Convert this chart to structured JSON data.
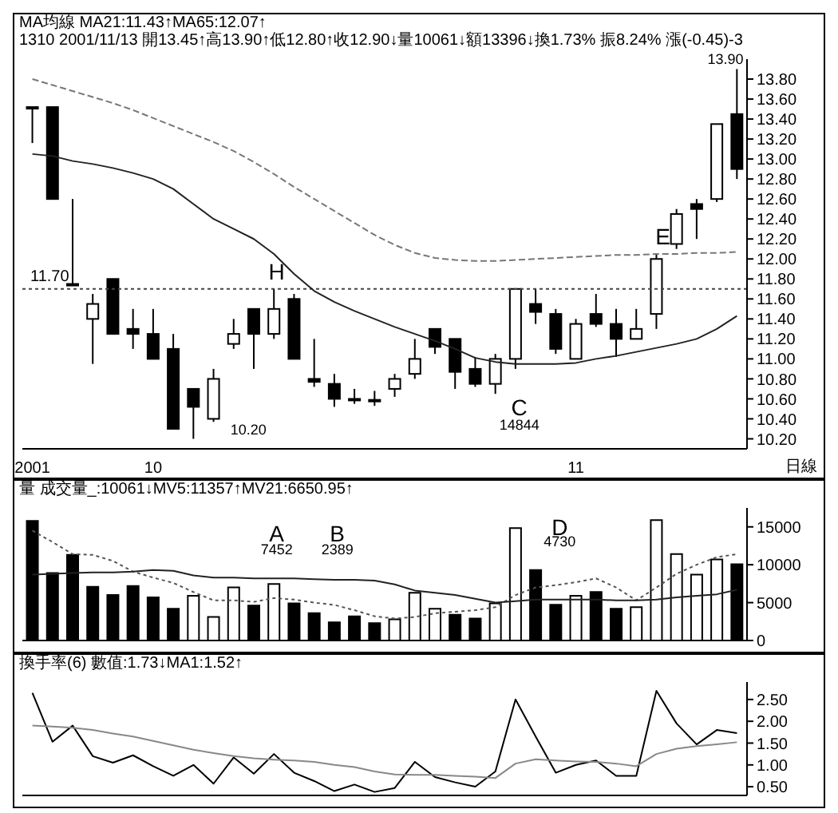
{
  "chart_data": [
    {
      "type": "candlestick",
      "title": "MA均線 MA21:11.43↑MA65:12.07↑",
      "subtitle": "1310 2001/11/13 開13.45↑高13.90↑低12.80↑收12.90↓量10061↓額13396↓換1.73% 振8.24% 漲(-0.45)-3",
      "categories": [
        "2001",
        null,
        null,
        null,
        null,
        null,
        "10",
        null,
        null,
        null,
        null,
        null,
        null,
        null,
        null,
        null,
        null,
        null,
        null,
        null,
        null,
        null,
        null,
        null,
        null,
        null,
        null,
        "11",
        null,
        null,
        null,
        null,
        null,
        null,
        null,
        null
      ],
      "ohlc": [
        [
          13.52,
          13.52,
          13.16,
          13.52
        ],
        [
          13.52,
          13.52,
          12.6,
          12.6
        ],
        [
          11.75,
          12.6,
          11.75,
          11.75
        ],
        [
          11.4,
          11.65,
          10.95,
          11.55
        ],
        [
          11.8,
          11.8,
          11.25,
          11.25
        ],
        [
          11.3,
          11.5,
          11.1,
          11.25
        ],
        [
          11.25,
          11.5,
          11.0,
          11.0
        ],
        [
          11.1,
          11.25,
          10.3,
          10.3
        ],
        [
          10.7,
          10.7,
          10.2,
          10.52
        ],
        [
          10.4,
          10.9,
          10.37,
          10.8
        ],
        [
          11.15,
          11.4,
          11.1,
          11.25
        ],
        [
          11.5,
          11.5,
          10.9,
          11.25
        ],
        [
          11.25,
          11.7,
          11.2,
          11.5
        ],
        [
          11.6,
          11.65,
          11.0,
          11.0
        ],
        [
          10.8,
          11.2,
          10.72,
          10.77
        ],
        [
          10.75,
          10.85,
          10.52,
          10.6
        ],
        [
          10.6,
          10.7,
          10.55,
          10.6
        ],
        [
          10.59,
          10.68,
          10.53,
          10.59
        ],
        [
          10.7,
          10.85,
          10.62,
          10.8
        ],
        [
          10.85,
          11.2,
          10.8,
          11.0
        ],
        [
          11.3,
          11.3,
          11.05,
          11.12
        ],
        [
          11.2,
          11.2,
          10.7,
          10.87
        ],
        [
          10.9,
          11.02,
          10.72,
          10.75
        ],
        [
          10.75,
          11.05,
          10.65,
          11.0
        ],
        [
          11.0,
          11.7,
          10.9,
          11.7
        ],
        [
          11.55,
          11.7,
          11.35,
          11.47
        ],
        [
          11.45,
          11.5,
          11.05,
          11.1
        ],
        [
          11.0,
          11.4,
          11.0,
          11.35
        ],
        [
          11.45,
          11.65,
          11.32,
          11.35
        ],
        [
          11.35,
          11.5,
          11.02,
          11.2
        ],
        [
          11.2,
          11.5,
          11.2,
          11.3
        ],
        [
          11.45,
          12.05,
          11.3,
          12.0
        ],
        [
          12.15,
          12.5,
          12.1,
          12.45
        ],
        [
          12.55,
          12.6,
          12.2,
          12.5
        ],
        [
          12.6,
          13.35,
          12.57,
          13.35
        ],
        [
          13.45,
          13.9,
          12.8,
          12.9
        ]
      ],
      "series": [
        {
          "type": "line",
          "color": "#222222",
          "line_style": "solid",
          "values": [
            13.05,
            13.03,
            12.98,
            12.95,
            12.91,
            12.86,
            12.8,
            12.7,
            12.55,
            12.4,
            12.3,
            12.2,
            12.05,
            11.85,
            11.68,
            11.57,
            11.48,
            11.4,
            11.32,
            11.25,
            11.18,
            11.1,
            11.01,
            10.97,
            10.95,
            10.95,
            10.95,
            10.96,
            11.0,
            11.03,
            11.07,
            11.11,
            11.15,
            11.2,
            11.3,
            11.43
          ]
        },
        {
          "type": "line",
          "color": "#777777",
          "line_style": "dashed",
          "values": [
            13.8,
            13.74,
            13.68,
            13.62,
            13.56,
            13.49,
            13.41,
            13.33,
            13.25,
            13.17,
            13.08,
            12.97,
            12.85,
            12.72,
            12.6,
            12.48,
            12.36,
            12.24,
            12.14,
            12.06,
            12.01,
            11.99,
            11.98,
            11.98,
            11.99,
            12.0,
            12.01,
            12.02,
            12.03,
            12.04,
            12.04,
            12.05,
            12.05,
            12.06,
            12.06,
            12.07
          ]
        }
      ],
      "ylim": [
        10.1,
        14.0
      ],
      "yticks": [
        {
          "value": 10.2,
          "label": "10.20"
        },
        {
          "value": 10.4,
          "label": "10.40"
        },
        {
          "value": 10.6,
          "label": "10.60"
        },
        {
          "value": 10.8,
          "label": "10.80"
        },
        {
          "value": 11,
          "label": "11.00"
        },
        {
          "value": 11.2,
          "label": "11.20"
        },
        {
          "value": 11.4,
          "label": "11.40"
        },
        {
          "value": 11.6,
          "label": "11.60"
        },
        {
          "value": 11.8,
          "label": "11.80"
        },
        {
          "value": 12,
          "label": "12.00"
        },
        {
          "value": 12.2,
          "label": "12.20"
        },
        {
          "value": 12.4,
          "label": "12.40"
        },
        {
          "value": 12.6,
          "label": "12.60"
        },
        {
          "value": 12.8,
          "label": "12.80"
        },
        {
          "value": 13,
          "label": "13.00"
        },
        {
          "value": 13.2,
          "label": "13.20"
        },
        {
          "value": 13.4,
          "label": "13.40"
        },
        {
          "value": 13.6,
          "label": "13.60"
        },
        {
          "value": 13.8,
          "label": "13.80"
        }
      ],
      "ref_lines": [
        {
          "axis": "y",
          "value": 11.7,
          "label": "11.70",
          "line_style": "dotted",
          "color": "#444444"
        }
      ],
      "annotations": [
        "13.90",
        "10.20",
        "H",
        "E",
        "C",
        "14844",
        "日線"
      ],
      "marker": "none",
      "grid": false,
      "legend": false
    },
    {
      "type": "bar",
      "title": "量 成交量_:10061↓MV5:11357↑MV21:6650.95↑",
      "categories": [
        "2001",
        null,
        null,
        null,
        null,
        null,
        "10",
        null,
        null,
        null,
        null,
        null,
        null,
        null,
        null,
        null,
        null,
        null,
        null,
        null,
        null,
        null,
        null,
        null,
        null,
        null,
        null,
        "11",
        null,
        null,
        null,
        null,
        null,
        null,
        null,
        null
      ],
      "series": [
        {
          "type": "bar",
          "values": [
            15800,
            8900,
            11300,
            7100,
            6000,
            7200,
            5700,
            4200,
            5900,
            3100,
            7000,
            4600,
            7452,
            4900,
            3600,
            2389,
            3200,
            2300,
            2800,
            6300,
            4200,
            3400,
            2900,
            4900,
            14844,
            9300,
            4730,
            5900,
            6400,
            4200,
            4400,
            15900,
            11400,
            8700,
            10700,
            10061
          ],
          "colors": [
            "#000000",
            "#000000",
            "#000000",
            "#000000",
            "#000000",
            "#000000",
            "#000000",
            "#000000",
            "#ffffff",
            "#ffffff",
            "#ffffff",
            "#000000",
            "#ffffff",
            "#000000",
            "#000000",
            "#000000",
            "#000000",
            "#000000",
            "#ffffff",
            "#ffffff",
            "#ffffff",
            "#000000",
            "#000000",
            "#ffffff",
            "#ffffff",
            "#000000",
            "#000000",
            "#ffffff",
            "#000000",
            "#000000",
            "#ffffff",
            "#ffffff",
            "#ffffff",
            "#ffffff",
            "#ffffff",
            "#000000"
          ]
        },
        {
          "type": "line",
          "color": "#555555",
          "line_style": "dotted",
          "values": [
            14500,
            13000,
            11400,
            11300,
            10500,
            9100,
            8300,
            7600,
            6400,
            5300,
            5300,
            5100,
            5600,
            5400,
            5000,
            4700,
            4000,
            3200,
            2900,
            3100,
            3600,
            3800,
            4000,
            4400,
            6000,
            7000,
            7300,
            7700,
            8200,
            7000,
            5300,
            7000,
            8800,
            10000,
            11000,
            11400
          ]
        },
        {
          "type": "line",
          "color": "#222222",
          "line_style": "solid",
          "values": [
            8700,
            8800,
            8900,
            9000,
            9000,
            9100,
            9300,
            9200,
            8600,
            8300,
            8300,
            8200,
            8200,
            8200,
            8100,
            8000,
            8000,
            7900,
            7400,
            6600,
            6300,
            6000,
            5500,
            5000,
            5200,
            5400,
            5400,
            5400,
            5400,
            5300,
            5300,
            5400,
            5700,
            5900,
            6100,
            6700
          ]
        }
      ],
      "ylim": [
        0,
        17500
      ],
      "yticks": [
        0,
        5000,
        10000,
        15000
      ],
      "annotations": [
        "A",
        "7452",
        "B",
        "2389",
        "D",
        "4730"
      ],
      "tick_labels": "y",
      "marker": "none",
      "grid": false,
      "legend": false
    },
    {
      "type": "line",
      "title": "換手率(6) 數值:1.73↓MA1:1.52↑",
      "categories": [
        null,
        null,
        null,
        null,
        null,
        null,
        null,
        null,
        null,
        null,
        null,
        null,
        null,
        null,
        null,
        null,
        null,
        null,
        null,
        null,
        null,
        null,
        null,
        null,
        null,
        null,
        null,
        null,
        null,
        null,
        null,
        null,
        null,
        null,
        null,
        null
      ],
      "series": [
        {
          "color": "#000000",
          "values": [
            2.65,
            1.53,
            1.9,
            1.2,
            1.05,
            1.22,
            0.97,
            0.75,
            1.0,
            0.57,
            1.17,
            0.8,
            1.25,
            0.82,
            0.63,
            0.4,
            0.55,
            0.38,
            0.47,
            1.07,
            0.72,
            0.6,
            0.5,
            0.85,
            2.5,
            1.65,
            0.82,
            1.0,
            1.1,
            0.75,
            0.75,
            2.7,
            1.95,
            1.47,
            1.8,
            1.73
          ]
        },
        {
          "color": "#888888",
          "values": [
            1.9,
            1.88,
            1.85,
            1.8,
            1.72,
            1.65,
            1.55,
            1.45,
            1.35,
            1.27,
            1.2,
            1.15,
            1.12,
            1.1,
            1.07,
            1.0,
            0.95,
            0.85,
            0.78,
            0.77,
            0.77,
            0.75,
            0.73,
            0.7,
            1.03,
            1.13,
            1.1,
            1.08,
            1.07,
            1.03,
            0.97,
            1.25,
            1.37,
            1.43,
            1.47,
            1.52
          ]
        }
      ],
      "ylim": [
        0.3,
        2.9
      ],
      "yticks": [
        {
          "value": 0.5,
          "label": "0.50"
        },
        {
          "value": 1,
          "label": "1.00"
        },
        {
          "value": 1.5,
          "label": "1.50"
        },
        {
          "value": 2,
          "label": "2.00"
        },
        {
          "value": 2.5,
          "label": "2.50"
        }
      ],
      "tick_labels": "y",
      "line_style": "solid",
      "marker": "none",
      "grid": false,
      "legend": false
    }
  ]
}
